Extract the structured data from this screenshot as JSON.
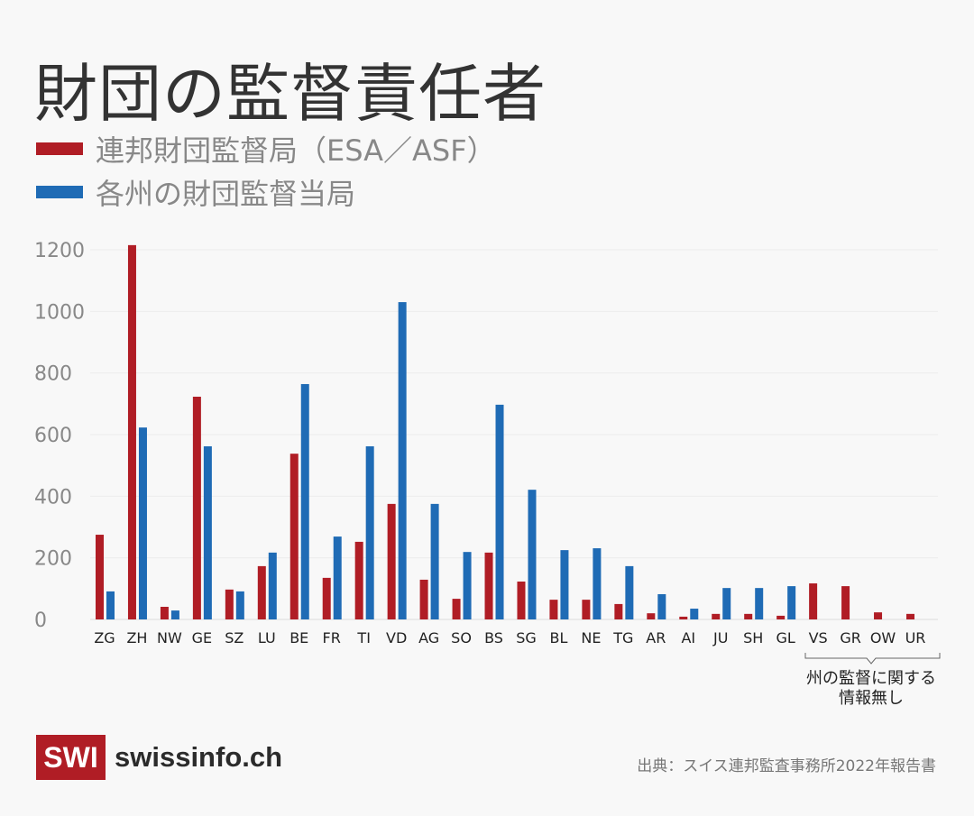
{
  "chart_data": {
    "type": "bar",
    "title": "財団の監督責任者",
    "categories": [
      "ZG",
      "ZH",
      "NW",
      "GE",
      "SZ",
      "LU",
      "BE",
      "FR",
      "TI",
      "VD",
      "AG",
      "SO",
      "BS",
      "SG",
      "BL",
      "NE",
      "TG",
      "AR",
      "AI",
      "JU",
      "SH",
      "GL",
      "VS",
      "GR",
      "OW",
      "UR"
    ],
    "series": [
      {
        "name": "連邦財団監督局（ESA／ASF）",
        "color": "#b01d25",
        "values": [
          275,
          1215,
          41,
          723,
          97,
          173,
          538,
          135,
          252,
          375,
          129,
          67,
          217,
          123,
          64,
          64,
          50,
          20,
          9,
          18,
          18,
          12,
          117,
          108,
          23,
          18
        ]
      },
      {
        "name": "各州の財団監督当局",
        "color": "#1f6bb5",
        "values": [
          91,
          623,
          29,
          562,
          91,
          217,
          764,
          269,
          562,
          1030,
          375,
          219,
          697,
          421,
          225,
          231,
          173,
          82,
          35,
          102,
          102,
          108,
          null,
          null,
          null,
          null
        ]
      }
    ],
    "yticks": [
      0,
      200,
      400,
      600,
      800,
      1000,
      1200
    ],
    "ylim": [
      0,
      1200
    ],
    "xlabel": "",
    "ylabel": "",
    "grid": true,
    "annotation": {
      "line1": "州の監督に関する",
      "line2": "情報無し",
      "covers": [
        "VS",
        "GR",
        "OW",
        "UR"
      ]
    }
  },
  "footer": {
    "logo_box": "SWI",
    "logo_name": "swissinfo.ch",
    "source": "出典：スイス連邦監査事務所2022年報告書"
  }
}
